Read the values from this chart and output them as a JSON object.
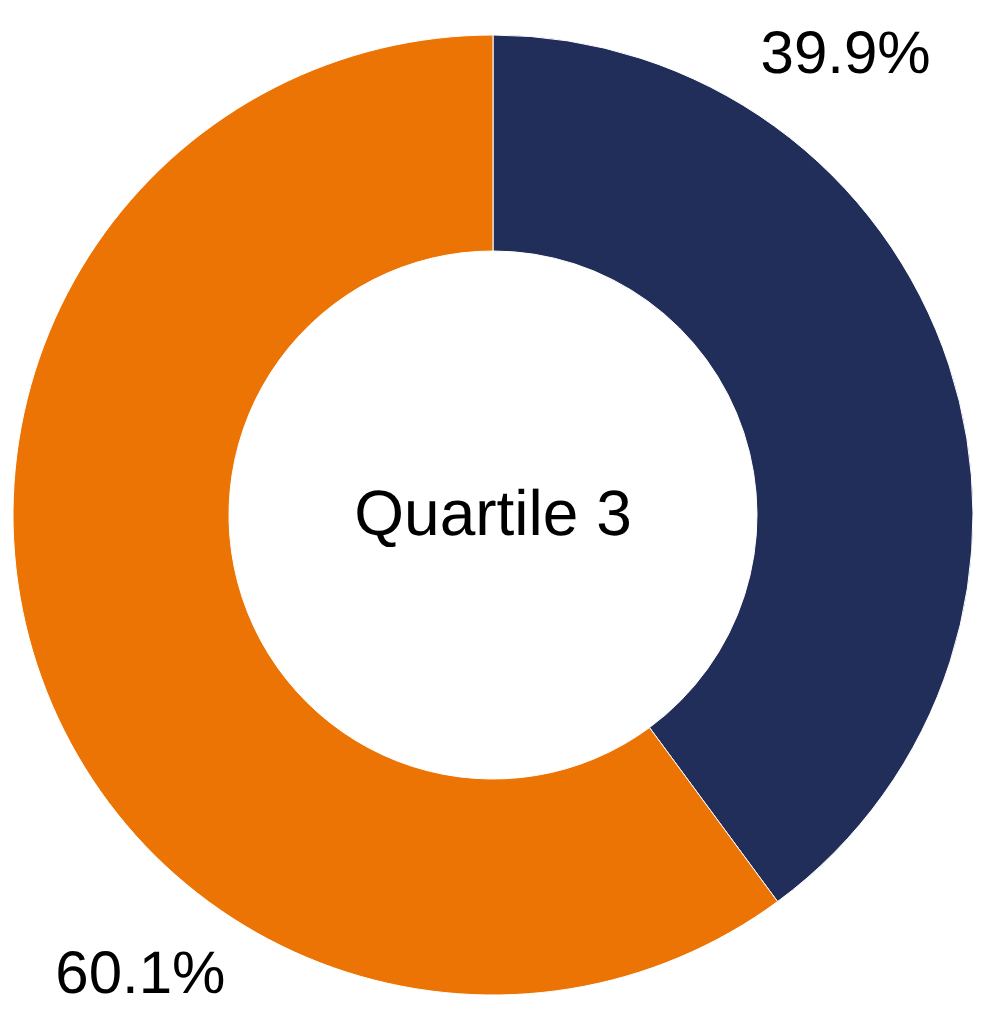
{
  "chart_data": {
    "type": "donut",
    "title": "Quartile 3",
    "categories": [
      null,
      null
    ],
    "values": [
      39.9,
      60.1
    ],
    "colors": [
      "#222e5a",
      "#ec7404"
    ],
    "value_labels": [
      "39.9%",
      "60.1%"
    ]
  }
}
